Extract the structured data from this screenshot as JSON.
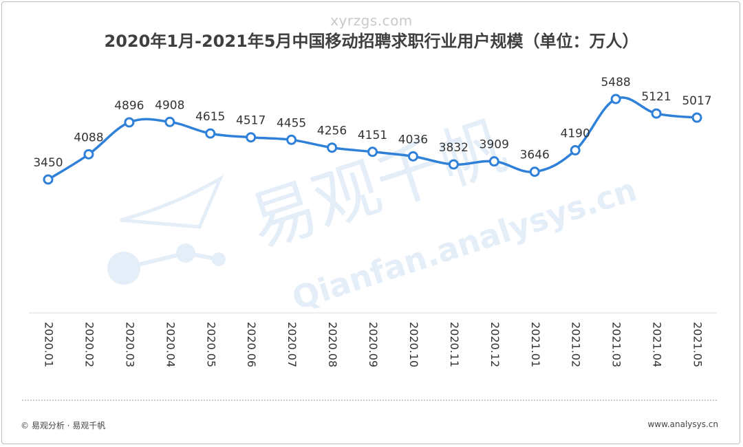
{
  "watermark_top": "xyrzgs.com",
  "watermark_center_cn": "易观千帆",
  "watermark_center_en": "Qianfan.analysys.cn",
  "footer": {
    "left": "© 易观分析 · 易观千帆",
    "right": "www.analysys.cn"
  },
  "colors": {
    "line": "#2f80d8",
    "title": "#3f3f3f",
    "watermark": "#e4eef8"
  },
  "chart_data": {
    "type": "line",
    "title": "2020年1月-2021年5月中国移动招聘求职行业用户规模（单位：万人）",
    "xlabel": "",
    "ylabel": "",
    "categories": [
      "2020.01",
      "2020.02",
      "2020.03",
      "2020.04",
      "2020.05",
      "2020.06",
      "2020.07",
      "2020.08",
      "2020.09",
      "2020.10",
      "2020.11",
      "2020.12",
      "2021.01",
      "2021.02",
      "2021.03",
      "2021.04",
      "2021.05"
    ],
    "series": [
      {
        "values": [
          3450,
          4088,
          4896,
          4908,
          4615,
          4517,
          4455,
          4256,
          4151,
          4036,
          3832,
          3909,
          3646,
          4190,
          5488,
          5121,
          5017
        ]
      }
    ],
    "grid": false,
    "legend": "none"
  }
}
